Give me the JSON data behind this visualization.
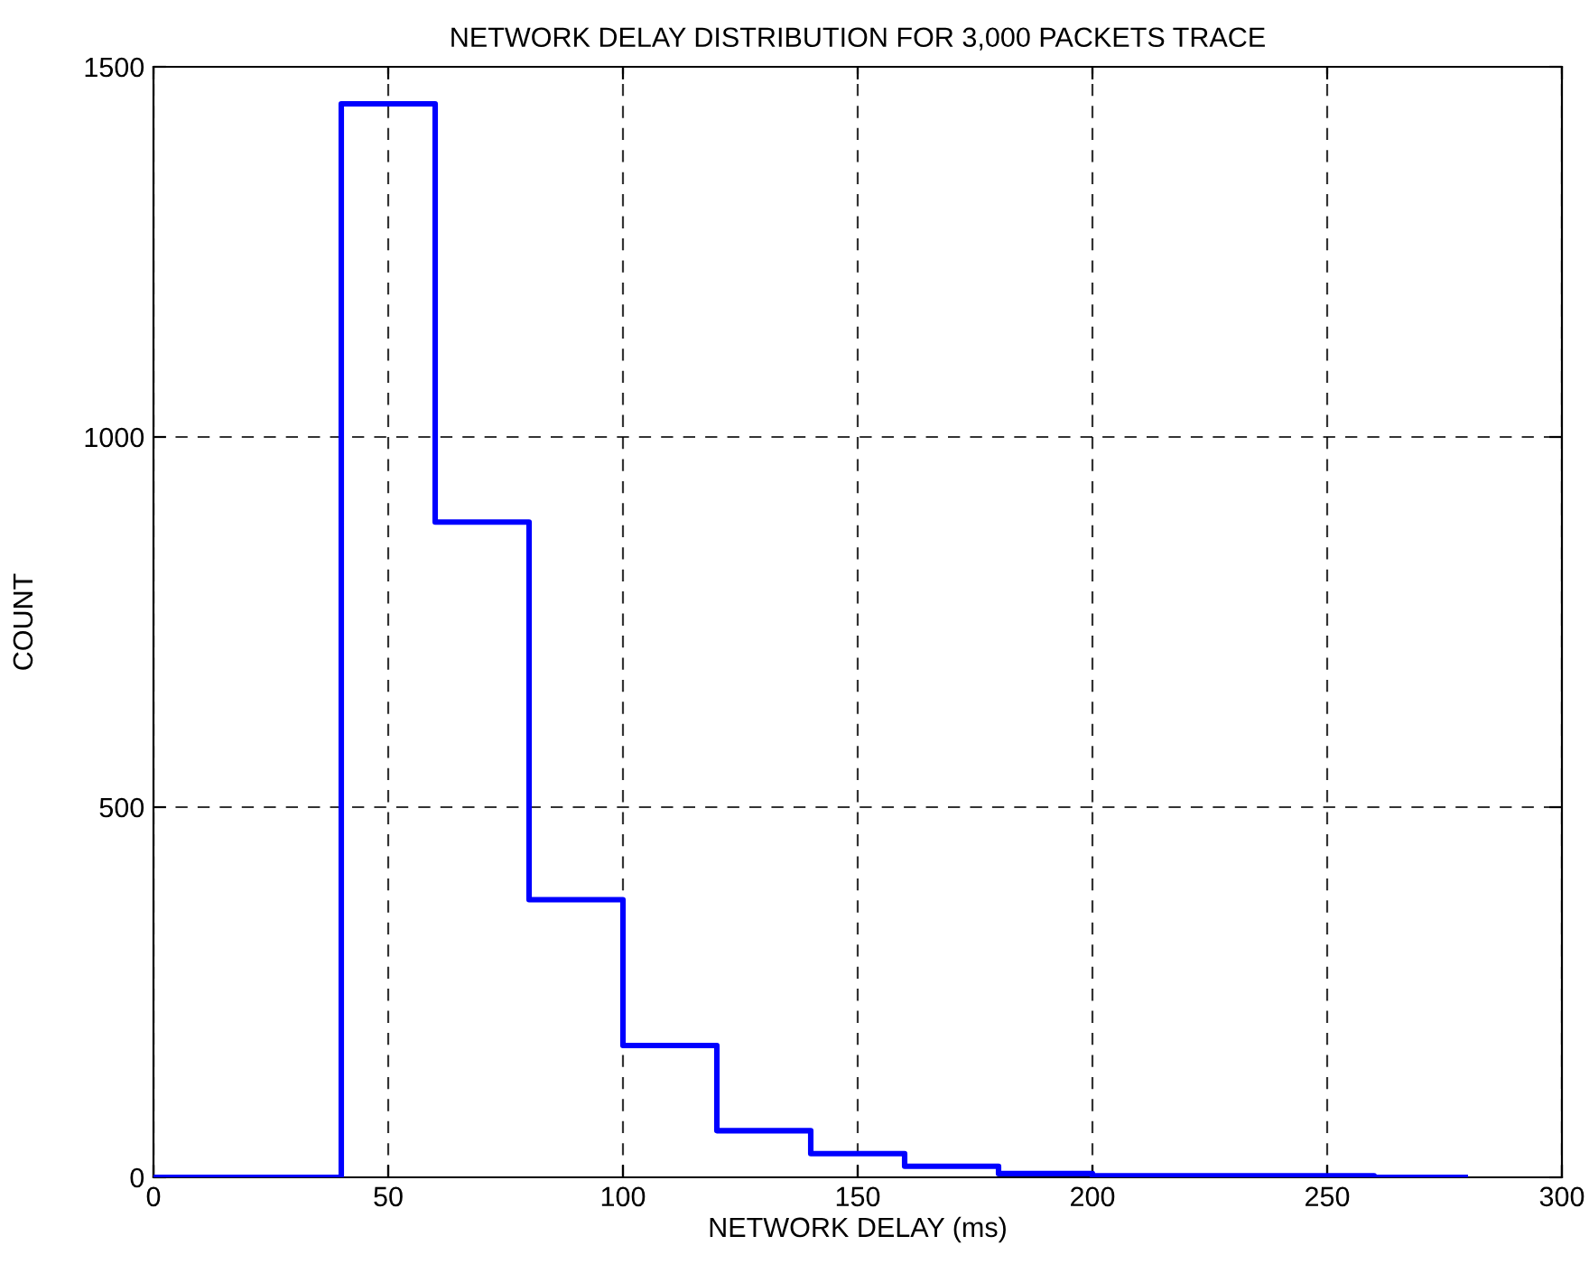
{
  "chart_data": {
    "type": "histogram",
    "title": "NETWORK DELAY DISTRIBUTION FOR 3,000 PACKETS TRACE",
    "xlabel": "NETWORK DELAY (ms)",
    "ylabel": "COUNT",
    "bins": [
      0,
      20,
      40,
      60,
      80,
      100,
      120,
      140,
      160,
      180,
      200,
      220,
      240,
      260,
      280
    ],
    "values": [
      0,
      0,
      1450,
      885,
      375,
      178,
      63,
      32,
      15,
      5,
      2,
      2,
      2,
      0
    ],
    "color": "#0000ff",
    "xlim": [
      0,
      300
    ],
    "ylim": [
      0,
      1500
    ],
    "xticks": [
      0,
      50,
      100,
      150,
      200,
      250,
      300
    ],
    "yticks": [
      0,
      500,
      1000,
      1500
    ],
    "grid": true,
    "line_style": "solid"
  }
}
